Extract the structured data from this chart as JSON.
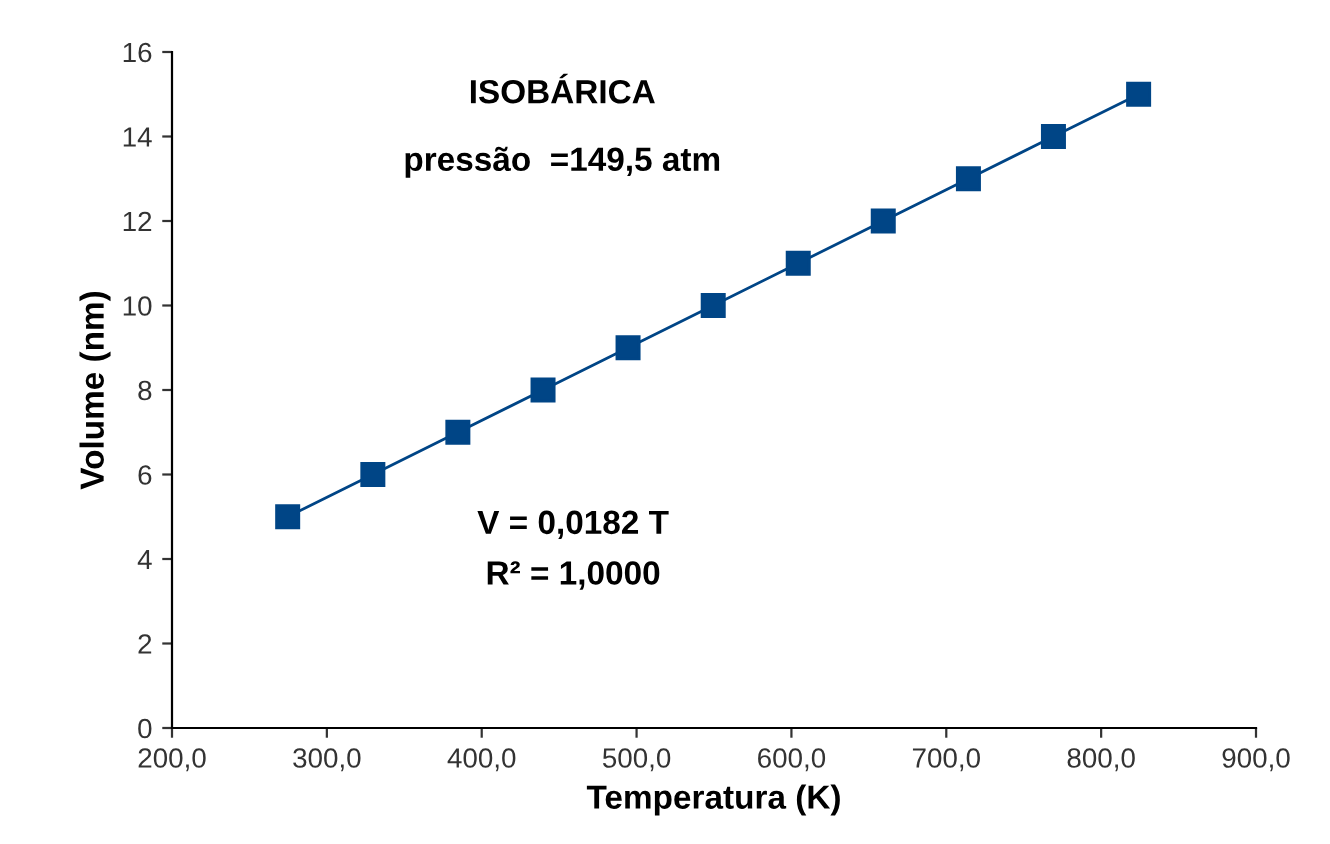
{
  "chart_data": {
    "type": "line",
    "title": "ISOBÁRICA",
    "subtitle": "pressão  =149,5 atm",
    "xlabel": "Temperatura (K)",
    "ylabel": "Volume (nm)",
    "x": [
      274.7,
      329.7,
      384.6,
      439.6,
      494.5,
      549.5,
      604.4,
      659.3,
      714.3,
      769.2,
      824.2
    ],
    "series": [
      {
        "color": "#004586",
        "values": [
          5,
          6,
          7,
          8,
          9,
          10,
          11,
          12,
          13,
          14,
          15
        ]
      }
    ],
    "marker": "square",
    "line_style": "solid",
    "grid": false,
    "legend": false,
    "xlim": [
      200,
      900
    ],
    "xticks": [
      {
        "value": 200,
        "label": "200,0"
      },
      {
        "value": 300,
        "label": "300,0"
      },
      {
        "value": 400,
        "label": "400,0"
      },
      {
        "value": 500,
        "label": "500,0"
      },
      {
        "value": 600,
        "label": "600,0"
      },
      {
        "value": 700,
        "label": "700,0"
      },
      {
        "value": 800,
        "label": "800,0"
      },
      {
        "value": 900,
        "label": "900,0"
      }
    ],
    "ylim": [
      0,
      16
    ],
    "yticks": [
      0,
      2,
      4,
      6,
      8,
      10,
      12,
      14,
      16
    ],
    "annotations": [
      "V = 0,0182 T",
      "R² = 1,0000"
    ]
  }
}
